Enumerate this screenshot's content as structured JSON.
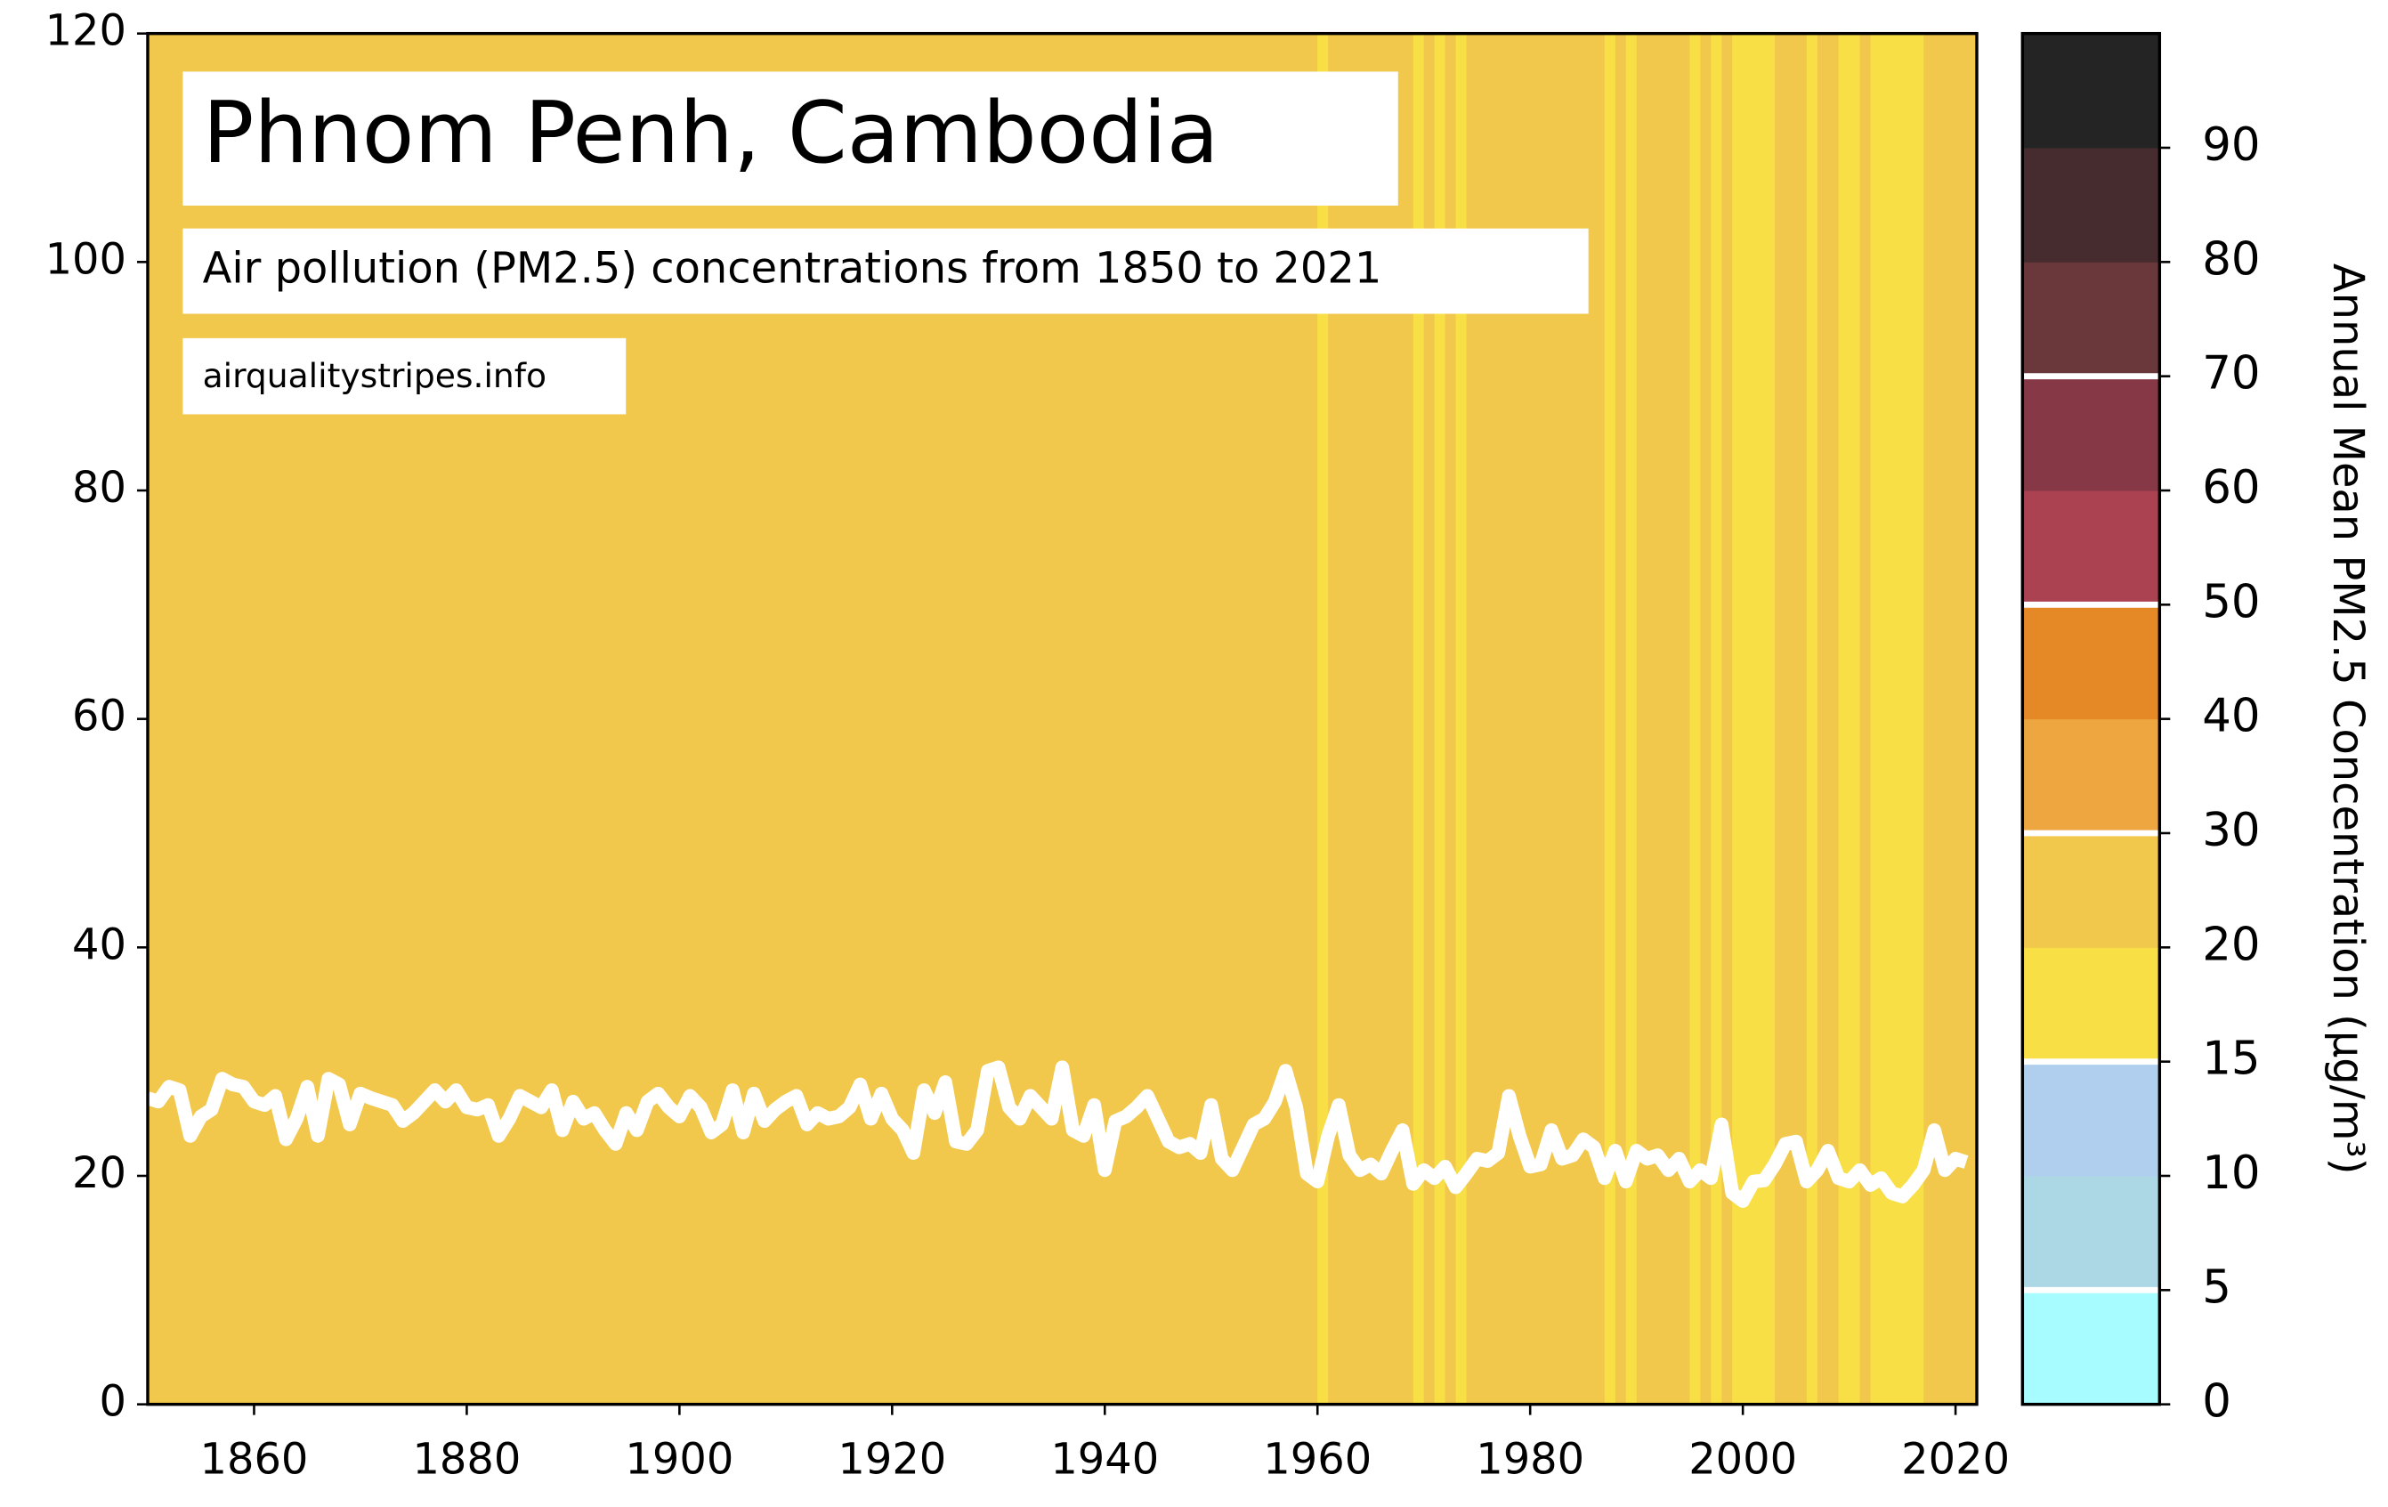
{
  "chart_data": {
    "type": "stripes",
    "title": "Phnom Penh, Cambodia",
    "subtitle": "Air pollution (PM2.5) concentrations from 1850 to 2021",
    "source": "airqualitystripes.info",
    "colorbar_label": "Annual Mean PM2.5 Concentration (μg/m³)",
    "x": [
      1850,
      1851,
      1852,
      1853,
      1854,
      1855,
      1856,
      1857,
      1858,
      1859,
      1860,
      1861,
      1862,
      1863,
      1864,
      1865,
      1866,
      1867,
      1868,
      1869,
      1870,
      1871,
      1872,
      1873,
      1874,
      1875,
      1876,
      1877,
      1878,
      1879,
      1880,
      1881,
      1882,
      1883,
      1884,
      1885,
      1886,
      1887,
      1888,
      1889,
      1890,
      1891,
      1892,
      1893,
      1894,
      1895,
      1896,
      1897,
      1898,
      1899,
      1900,
      1901,
      1902,
      1903,
      1904,
      1905,
      1906,
      1907,
      1908,
      1909,
      1910,
      1911,
      1912,
      1913,
      1914,
      1915,
      1916,
      1917,
      1918,
      1919,
      1920,
      1921,
      1922,
      1923,
      1924,
      1925,
      1926,
      1927,
      1928,
      1929,
      1930,
      1931,
      1932,
      1933,
      1934,
      1935,
      1936,
      1937,
      1938,
      1939,
      1940,
      1941,
      1942,
      1943,
      1944,
      1945,
      1946,
      1947,
      1948,
      1949,
      1950,
      1951,
      1952,
      1953,
      1954,
      1955,
      1956,
      1957,
      1958,
      1959,
      1960,
      1961,
      1962,
      1963,
      1964,
      1965,
      1966,
      1967,
      1968,
      1969,
      1970,
      1971,
      1972,
      1973,
      1974,
      1975,
      1976,
      1977,
      1978,
      1979,
      1980,
      1981,
      1982,
      1983,
      1984,
      1985,
      1986,
      1987,
      1988,
      1989,
      1990,
      1991,
      1992,
      1993,
      1994,
      1995,
      1996,
      1997,
      1998,
      1999,
      2000,
      2001,
      2002,
      2003,
      2004,
      2005,
      2006,
      2007,
      2008,
      2009,
      2010,
      2011,
      2012,
      2013,
      2014,
      2015,
      2016,
      2017,
      2018,
      2019,
      2020,
      2021
    ],
    "values": [
      26.8,
      26.5,
      27.8,
      27.5,
      23.5,
      25.2,
      25.8,
      28.5,
      28,
      27.8,
      26.5,
      26.2,
      27,
      23.2,
      25,
      27.8,
      23.5,
      28.5,
      28,
      24.5,
      27.2,
      26.8,
      26.5,
      26.2,
      24.8,
      25.5,
      26.5,
      27.5,
      26.5,
      27.5,
      26,
      25.8,
      26.2,
      23.5,
      25,
      27,
      26.5,
      26,
      27.5,
      24,
      26.5,
      25,
      25.5,
      24,
      22.8,
      25.5,
      24,
      26.5,
      27.2,
      26,
      25.2,
      27,
      26,
      23.8,
      24.5,
      27.5,
      23.8,
      27.2,
      24.8,
      25.8,
      26.5,
      27,
      24.5,
      25.5,
      25,
      25.2,
      26,
      28,
      25,
      27.2,
      25,
      24,
      22,
      27.5,
      25.5,
      28.2,
      23,
      22.8,
      24,
      29.2,
      29.5,
      26,
      25,
      27,
      26,
      25,
      29.5,
      24,
      23.5,
      26.2,
      20.5,
      24.8,
      25.2,
      26,
      27,
      25,
      23,
      22.5,
      22.8,
      22,
      26.2,
      21.5,
      20.5,
      22.5,
      24.5,
      25,
      26.5,
      29.2,
      26,
      20.2,
      19.5,
      23.5,
      26.2,
      21.8,
      20.5,
      21,
      20.2,
      22.2,
      24,
      19.3,
      20.5,
      19.8,
      20.8,
      19,
      20.2,
      21.5,
      21.3,
      22,
      27,
      23.5,
      20.8,
      21,
      24,
      21.5,
      21.8,
      23.2,
      22.5,
      19.8,
      22.2,
      19.5,
      22.2,
      21.5,
      21.8,
      20.5,
      21.5,
      19.5,
      20.5,
      19.8,
      24.5,
      18.5,
      17.8,
      19.5,
      19.6,
      21,
      22.8,
      23,
      19.5,
      20.5,
      22.2,
      19.8,
      19.5,
      20.5,
      19.2,
      19.8,
      18.5,
      18.2,
      19.2,
      20.5,
      24,
      20.5,
      21.5,
      21.2
    ],
    "line_color": "#ffffff",
    "xlim": [
      1850,
      2022
    ],
    "xticks": [
      1860,
      1880,
      1900,
      1920,
      1940,
      1960,
      1980,
      2000,
      2020
    ],
    "ylim": [
      0,
      120
    ],
    "yticks": [
      0,
      20,
      40,
      60,
      80,
      100,
      120
    ],
    "colorbar_ticks": [
      0,
      5,
      10,
      15,
      20,
      30,
      40,
      50,
      60,
      70,
      80,
      90
    ],
    "colorbar_colors": [
      "#a6fcff",
      "#acd8e6",
      "#b0cfee",
      "#f8df46",
      "#f1c84b",
      "#eea740",
      "#e58826",
      "#ab4251",
      "#873846",
      "#6a373b",
      "#462c2f",
      "#242424"
    ],
    "colorbar_markers": [
      5,
      15,
      30,
      50,
      70
    ]
  }
}
